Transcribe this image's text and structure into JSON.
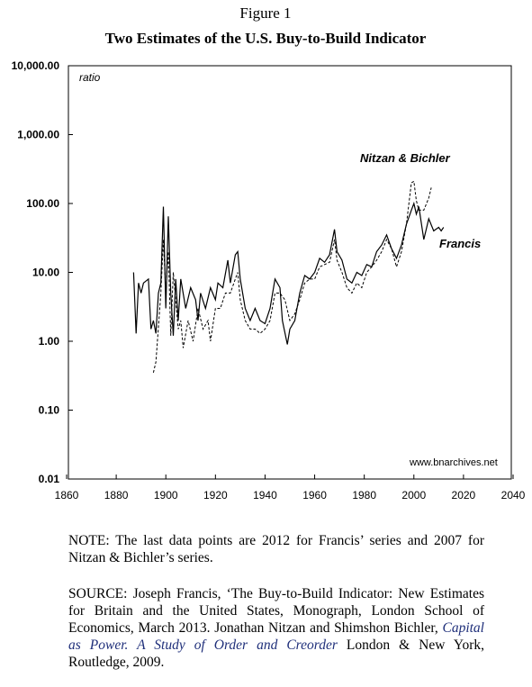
{
  "chart_data": {
    "type": "line",
    "title": "Figure 1",
    "subtitle": "Two Estimates of the U.S. Buy-to-Build Indicator",
    "y_label": "ratio",
    "source_label": "www.bnarchives.net",
    "log_y": true,
    "grid": false,
    "xlim": [
      1860,
      2040
    ],
    "xticks": [
      1860,
      1880,
      1900,
      1920,
      1940,
      1960,
      1980,
      2000,
      2020,
      2040
    ],
    "ylim": [
      0.01,
      10000
    ],
    "yticks": [
      {
        "value": 0.01,
        "label": "0.01"
      },
      {
        "value": 0.1,
        "label": "0.10"
      },
      {
        "value": 1,
        "label": "1.00"
      },
      {
        "value": 10,
        "label": "10.00"
      },
      {
        "value": 100,
        "label": "100.00"
      },
      {
        "value": 1000,
        "label": "1,000.00"
      },
      {
        "value": 10000,
        "label": "10,000.00"
      }
    ],
    "series": [
      {
        "name": "Francis",
        "color": "#000000",
        "dashed": false,
        "x": [
          1887,
          1888,
          1889,
          1890,
          1891,
          1893,
          1894,
          1895,
          1896,
          1897,
          1898,
          1899,
          1900,
          1901,
          1902,
          1903,
          1904,
          1905,
          1906,
          1908,
          1910,
          1912,
          1913,
          1914,
          1916,
          1918,
          1920,
          1921,
          1923,
          1925,
          1926,
          1928,
          1929,
          1930,
          1932,
          1934,
          1936,
          1938,
          1940,
          1942,
          1944,
          1946,
          1947,
          1949,
          1950,
          1952,
          1954,
          1956,
          1958,
          1960,
          1962,
          1964,
          1966,
          1968,
          1969,
          1971,
          1973,
          1975,
          1977,
          1979,
          1981,
          1983,
          1985,
          1987,
          1989,
          1991,
          1993,
          1995,
          1997,
          1999,
          2000,
          2001,
          2002,
          2004,
          2006,
          2008,
          2010,
          2011,
          2012
        ],
        "values": [
          10,
          1.3,
          7,
          5,
          7,
          8,
          1.5,
          2,
          1.3,
          5,
          7,
          90,
          3,
          65,
          5,
          1.2,
          8,
          2,
          8,
          3,
          6,
          4,
          2,
          5,
          3,
          6,
          4,
          7,
          6,
          15,
          7,
          18,
          20,
          8,
          3,
          2,
          3,
          2,
          1.8,
          3,
          8,
          6,
          2,
          0.9,
          1.5,
          2,
          5,
          9,
          8,
          10,
          16,
          14,
          18,
          42,
          20,
          15,
          8,
          7,
          10,
          9,
          13,
          12,
          20,
          25,
          35,
          22,
          16,
          25,
          50,
          80,
          100,
          70,
          90,
          30,
          60,
          40,
          45,
          40,
          45
        ]
      },
      {
        "name": "Nitzan & Bichler",
        "color": "#000000",
        "dashed": true,
        "x": [
          1895,
          1896,
          1898,
          1899,
          1900,
          1901,
          1902,
          1903,
          1905,
          1906,
          1907,
          1909,
          1911,
          1913,
          1915,
          1917,
          1918,
          1920,
          1922,
          1924,
          1926,
          1928,
          1929,
          1930,
          1932,
          1934,
          1936,
          1938,
          1940,
          1942,
          1944,
          1946,
          1948,
          1950,
          1952,
          1954,
          1956,
          1958,
          1960,
          1962,
          1964,
          1966,
          1968,
          1969,
          1971,
          1973,
          1975,
          1977,
          1979,
          1981,
          1983,
          1985,
          1987,
          1989,
          1991,
          1993,
          1995,
          1997,
          1999,
          2000,
          2001,
          2002,
          2004,
          2006,
          2007
        ],
        "values": [
          0.35,
          0.5,
          5,
          30,
          5,
          20,
          1.2,
          10,
          1.5,
          2,
          0.8,
          2,
          1,
          3,
          1.5,
          2,
          1,
          3,
          3,
          5,
          5,
          8,
          10,
          4,
          2,
          1.5,
          1.5,
          1.3,
          1.5,
          2,
          5,
          5,
          4,
          2,
          2.5,
          4,
          7,
          8,
          8,
          12,
          13,
          14,
          30,
          15,
          10,
          6,
          5,
          7,
          6,
          10,
          12,
          15,
          20,
          30,
          22,
          12,
          20,
          50,
          200,
          210,
          110,
          80,
          80,
          120,
          170
        ]
      }
    ]
  },
  "notes": {
    "note": "NOTE: The last data points are 2012 for Francis’ series and 2007 for Nitzan & Bichler’s series.",
    "source": "SOURCE: Joseph Francis, ‘The Buy-to-Build Indicator: New Estimates for Britain and the United States, Monograph, London School of Economics, March 2013. Jonathan Nitzan and Shimshon Bichler,",
    "source_book": "Capital as Power. A Study of Order and Creorder",
    "source_end": "London & New York, Routledge, 2009."
  }
}
